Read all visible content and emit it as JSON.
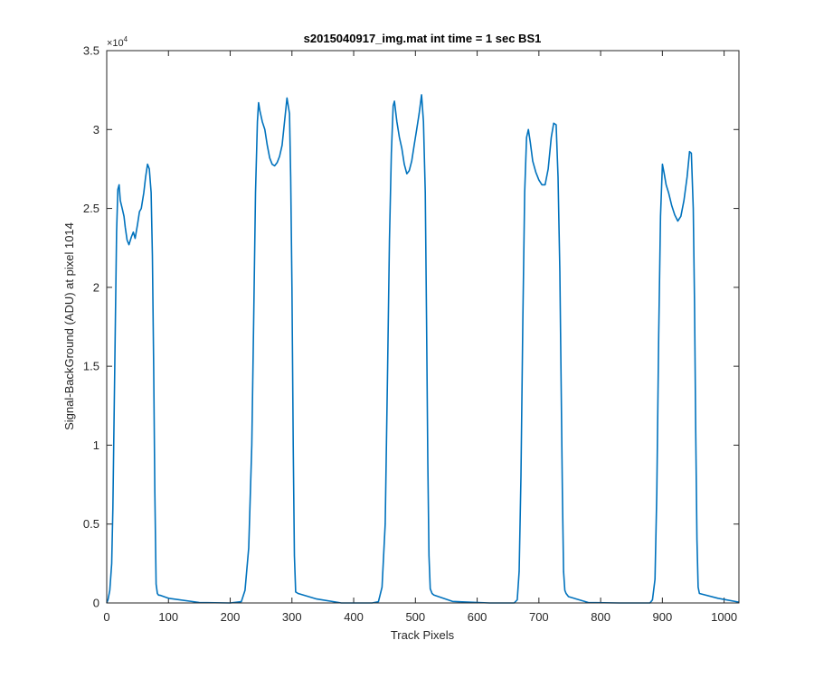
{
  "chart_data": {
    "type": "line",
    "title": "s2015040917_img.mat int time = 1 sec   BS1",
    "xlabel": "Track Pixels",
    "ylabel": "Signal-BackGround (ADU) at pixel 1014",
    "xlim": [
      0,
      1024
    ],
    "ylim": [
      0,
      35000
    ],
    "x_ticks": [
      0,
      100,
      200,
      300,
      400,
      500,
      600,
      700,
      800,
      900,
      1000
    ],
    "x_tick_labels": [
      "0",
      "100",
      "200",
      "300",
      "400",
      "500",
      "600",
      "700",
      "800",
      "900",
      "1000"
    ],
    "y_ticks": [
      0,
      5000,
      10000,
      15000,
      20000,
      25000,
      30000,
      35000
    ],
    "y_tick_labels": [
      "0",
      "0.5",
      "1",
      "1.5",
      "2",
      "2.5",
      "3",
      "3.5"
    ],
    "y_exponent_label": "×10",
    "y_exponent_power": "4",
    "grid": false,
    "line_color": "#0072bd",
    "series": [
      {
        "x": [
          0,
          2,
          5,
          8,
          10,
          12,
          14,
          16,
          18,
          20,
          22,
          25,
          28,
          30,
          33,
          36,
          40,
          43,
          46,
          50,
          53,
          56,
          60,
          63,
          66,
          69,
          72,
          74,
          76,
          78,
          80,
          82,
          84,
          87,
          100,
          150,
          200,
          218,
          224,
          230,
          235,
          238,
          241,
          244,
          246,
          248,
          252,
          256,
          260,
          264,
          268,
          272,
          276,
          280,
          284,
          288,
          292,
          296,
          298,
          300,
          302,
          304,
          306,
          310,
          340,
          380,
          430,
          440,
          446,
          451,
          455,
          458,
          461,
          464,
          466,
          470,
          474,
          478,
          482,
          486,
          490,
          494,
          498,
          502,
          506,
          510,
          513,
          516,
          518,
          520,
          522,
          524,
          527,
          530,
          560,
          620,
          660,
          665,
          668,
          671,
          674,
          677,
          680,
          683,
          686,
          690,
          695,
          700,
          705,
          710,
          715,
          720,
          724,
          728,
          731,
          734,
          736,
          738,
          740,
          742,
          744,
          748,
          780,
          830,
          880,
          884,
          888,
          891,
          894,
          897,
          900,
          903,
          906,
          910,
          915,
          920,
          925,
          930,
          935,
          940,
          944,
          947,
          950,
          952,
          954,
          956,
          958,
          960,
          965,
          990,
          1024
        ],
        "y": [
          0,
          200,
          800,
          2500,
          6000,
          12000,
          18000,
          23500,
          26200,
          26500,
          25500,
          25000,
          24500,
          23800,
          23000,
          22700,
          23200,
          23500,
          23100,
          24000,
          24800,
          25000,
          26000,
          27000,
          27800,
          27500,
          26000,
          22000,
          15000,
          7000,
          1200,
          600,
          500,
          480,
          300,
          30,
          0,
          80,
          800,
          3500,
          10000,
          18000,
          26000,
          30500,
          31700,
          31200,
          30500,
          30000,
          29000,
          28200,
          27800,
          27700,
          27900,
          28300,
          29000,
          30500,
          32000,
          31000,
          27000,
          20000,
          10000,
          3000,
          700,
          600,
          250,
          0,
          0,
          80,
          1000,
          5000,
          15000,
          23000,
          28500,
          31500,
          31800,
          30500,
          29500,
          28800,
          27800,
          27200,
          27400,
          28000,
          29000,
          30000,
          31000,
          32200,
          30500,
          26000,
          18000,
          9000,
          3000,
          900,
          600,
          500,
          100,
          0,
          0,
          200,
          2000,
          8000,
          18000,
          26000,
          29500,
          30000,
          29200,
          28000,
          27300,
          26800,
          26500,
          26500,
          27500,
          29500,
          30400,
          30300,
          27000,
          21000,
          14000,
          7000,
          2000,
          800,
          600,
          400,
          30,
          0,
          0,
          200,
          1500,
          7000,
          17000,
          24500,
          27800,
          27200,
          26500,
          26000,
          25200,
          24600,
          24200,
          24500,
          25500,
          27000,
          28600,
          28500,
          25000,
          19000,
          11000,
          4000,
          1000,
          600,
          550,
          300,
          50
        ]
      }
    ]
  }
}
